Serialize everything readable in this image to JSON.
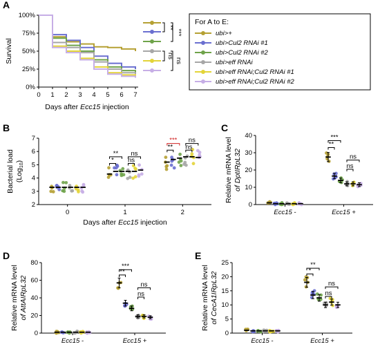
{
  "colors": {
    "ubi_plus": "#b5a033",
    "cul2_1": "#6a6fd0",
    "cul2_2": "#6fa34a",
    "eff": "#a6a6a6",
    "eff_cul2_1": "#e3d438",
    "eff_cul2_2": "#c6aee6",
    "sig_red": "#d02020",
    "sig_black": "#000000"
  },
  "legend": {
    "title": "For A to E:",
    "entries": [
      "ubi>+",
      "ubi>Cul2 RNAi #1",
      "ubi>Cul2 RNAi #2",
      "ubi>eff RNAi",
      "ubi>eff RNAi;Cul2 RNAi #1",
      "ubi>eff RNAi;Cul2 RNAi #2"
    ]
  },
  "chart_data": [
    {
      "panel": "A",
      "type": "line",
      "xlabel_prefix": "Days after ",
      "xlabel_italic": "Ecc15",
      "xlabel_suffix": " injection",
      "ylabel": "Survival",
      "x_ticks": [
        "0",
        "1",
        "2",
        "3",
        "4",
        "5",
        "6",
        "7"
      ],
      "y_ticks": [
        "0%",
        "25%",
        "50%",
        "75%",
        "100%"
      ],
      "xlim": [
        0,
        7
      ],
      "ylim": [
        0,
        100
      ],
      "x": [
        0,
        1,
        2,
        3,
        4,
        5,
        6,
        7
      ],
      "series": [
        {
          "color_key": "ubi_plus",
          "values": [
            100,
            70,
            63,
            60,
            56,
            55,
            53,
            50
          ]
        },
        {
          "color_key": "cul2_1",
          "values": [
            100,
            73,
            65,
            55,
            43,
            33,
            28,
            25
          ]
        },
        {
          "color_key": "cul2_2",
          "values": [
            100,
            68,
            58,
            50,
            38,
            28,
            23,
            20
          ]
        },
        {
          "color_key": "eff",
          "values": [
            100,
            62,
            55,
            48,
            35,
            25,
            20,
            18
          ]
        },
        {
          "color_key": "eff_cul2_1",
          "values": [
            100,
            57,
            50,
            40,
            28,
            20,
            17,
            15
          ]
        },
        {
          "color_key": "eff_cul2_2",
          "values": [
            100,
            55,
            48,
            38,
            25,
            18,
            15,
            13
          ]
        }
      ],
      "significance": [
        {
          "label": "**",
          "color": "sig_black"
        },
        {
          "label": "***",
          "color": "sig_black"
        },
        {
          "label": "ns",
          "color": "sig_black"
        },
        {
          "label": "ns",
          "color": "sig_black"
        }
      ]
    },
    {
      "panel": "B",
      "type": "scatter",
      "xlabel_prefix": "Days after ",
      "xlabel_italic": "Ecc15",
      "xlabel_suffix": " injection",
      "ylabel_line1": "Bacterial load",
      "ylabel_line2_prefix": "(Log",
      "ylabel_line2_sub": "10",
      "ylabel_line2_suffix": ")",
      "categories": [
        "0",
        "1",
        "2"
      ],
      "y_ticks": [
        "2",
        "3",
        "4",
        "5",
        "6",
        "7"
      ],
      "ylim": [
        2,
        7
      ],
      "means": [
        [
          3.3,
          3.3,
          3.3,
          3.3,
          3.3,
          3.3
        ],
        [
          4.3,
          4.5,
          4.5,
          4.5,
          4.5,
          4.6
        ],
        [
          5.2,
          5.4,
          5.5,
          5.6,
          5.6,
          5.55
        ]
      ],
      "significance": [
        {
          "label": "*",
          "color": "sig_black"
        },
        {
          "label": "**",
          "color": "sig_black"
        },
        {
          "label": "ns",
          "color": "sig_black"
        },
        {
          "label": "ns",
          "color": "sig_black"
        },
        {
          "label": "**",
          "color": "sig_black"
        },
        {
          "label": "***",
          "color": "sig_red"
        },
        {
          "label": "ns",
          "color": "sig_black"
        },
        {
          "label": "ns",
          "color": "sig_black"
        }
      ]
    },
    {
      "panel": "C",
      "type": "scatter",
      "ylabel_line1": "Relative mRNA level",
      "ylabel_line2": "of DptIRpL32",
      "categories": [
        "Ecc15 -",
        "Ecc15 +"
      ],
      "y_ticks": [
        "0",
        "10",
        "20",
        "30",
        "40"
      ],
      "ylim": [
        0,
        40
      ],
      "means": [
        [
          1.0,
          0.5,
          0.5,
          0.5,
          0.5,
          0.5
        ],
        [
          27.5,
          16.5,
          14.0,
          12.0,
          12.0,
          11.5
        ]
      ],
      "significance": [
        {
          "label": "**",
          "color": "sig_black"
        },
        {
          "label": "***",
          "color": "sig_black"
        },
        {
          "label": "ns",
          "color": "sig_black"
        },
        {
          "label": "ns",
          "color": "sig_black"
        }
      ]
    },
    {
      "panel": "D",
      "type": "scatter",
      "ylabel_line1": "Relative mRNA level",
      "ylabel_line2": "of AttAIRpL32",
      "categories": [
        "Ecc15 -",
        "Ecc15 +"
      ],
      "y_ticks": [
        "0",
        "20",
        "40",
        "60",
        "80"
      ],
      "ylim": [
        0,
        80
      ],
      "means": [
        [
          1.0,
          1.0,
          1.0,
          1.0,
          1.0,
          1.0
        ],
        [
          57.0,
          34.0,
          28.0,
          19.0,
          19.0,
          18.0
        ]
      ],
      "significance": [
        {
          "label": "**",
          "color": "sig_black"
        },
        {
          "label": "***",
          "color": "sig_black"
        },
        {
          "label": "ns",
          "color": "sig_black"
        },
        {
          "label": "ns",
          "color": "sig_black"
        }
      ]
    },
    {
      "panel": "E",
      "type": "scatter",
      "ylabel_line1": "Relative mRNA level",
      "ylabel_line2": "of CecA1IRpL32",
      "categories": [
        "Ecc15 -",
        "Ecc15 +"
      ],
      "y_ticks": [
        "0",
        "5",
        "10",
        "15",
        "20",
        "25"
      ],
      "ylim": [
        0,
        25
      ],
      "means": [
        [
          1.0,
          0.8,
          0.8,
          0.8,
          0.8,
          0.8
        ],
        [
          18.0,
          13.5,
          12.5,
          10.0,
          11.0,
          10.0
        ]
      ],
      "significance": [
        {
          "label": "*",
          "color": "sig_black"
        },
        {
          "label": "**",
          "color": "sig_black"
        },
        {
          "label": "ns",
          "color": "sig_black"
        },
        {
          "label": "ns",
          "color": "sig_black"
        }
      ]
    }
  ]
}
